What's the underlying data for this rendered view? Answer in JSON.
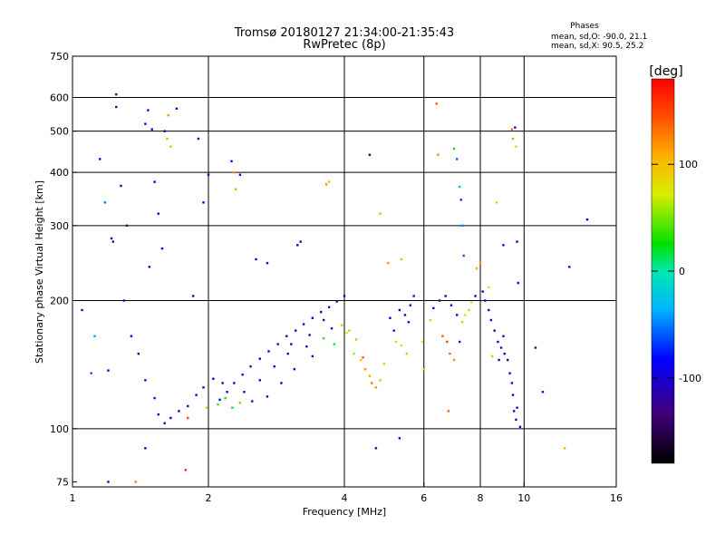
{
  "chart_data": {
    "type": "scatter",
    "title": "Tromsø 20180127 21:34:00-21:35:43",
    "subtitle": "RwPretec (8p)",
    "phase_box": {
      "heading": "Phases",
      "line1": "mean, sd,O: -90.0, 21.1",
      "line2": "mean, sd,X:  90.5, 25.2"
    },
    "xlabel": "Frequency [MHz]",
    "ylabel": "Stationary phase Virtual Height [km]",
    "x_scale": "log",
    "y_scale": "log",
    "xlim": [
      1,
      16
    ],
    "ylim": [
      73,
      750
    ],
    "x_ticks": [
      1,
      2,
      4,
      6,
      8,
      10,
      16
    ],
    "y_ticks": [
      75,
      100,
      200,
      300,
      400,
      500,
      600,
      750
    ],
    "x_gridlines": [
      2,
      4,
      6,
      8,
      10
    ],
    "y_gridlines": [
      100,
      200,
      300,
      400,
      500,
      600
    ],
    "grid": true,
    "colorbar": {
      "label": "[deg]",
      "range": [
        -180,
        180
      ],
      "ticks": [
        100,
        0,
        -100
      ]
    },
    "points": [
      [
        1.05,
        190,
        -100
      ],
      [
        1.1,
        135,
        -60
      ],
      [
        1.12,
        165,
        -40
      ],
      [
        1.15,
        430,
        -100
      ],
      [
        1.18,
        340,
        -50
      ],
      [
        1.25,
        610,
        -120
      ],
      [
        1.25,
        570,
        -110
      ],
      [
        1.28,
        372,
        -100
      ],
      [
        1.32,
        300,
        -130
      ],
      [
        1.45,
        520,
        -100
      ],
      [
        1.47,
        560,
        -110
      ],
      [
        1.5,
        505,
        -80
      ],
      [
        1.52,
        380,
        -90
      ],
      [
        1.55,
        320,
        -110
      ],
      [
        1.58,
        265,
        -100
      ],
      [
        1.62,
        480,
        110
      ],
      [
        1.63,
        545,
        120
      ],
      [
        1.65,
        460,
        100
      ],
      [
        1.7,
        565,
        -120
      ],
      [
        1.85,
        205,
        -100
      ],
      [
        1.9,
        480,
        -100
      ],
      [
        1.95,
        340,
        -90
      ],
      [
        2.0,
        395,
        -100
      ],
      [
        2.25,
        425,
        -80
      ],
      [
        2.28,
        400,
        120
      ],
      [
        2.3,
        365,
        110
      ],
      [
        2.35,
        395,
        -100
      ],
      [
        2.55,
        250,
        -100
      ],
      [
        2.7,
        245,
        -110
      ],
      [
        3.15,
        270,
        -100
      ],
      [
        3.2,
        275,
        -120
      ],
      [
        3.65,
        375,
        120
      ],
      [
        3.7,
        380,
        100
      ],
      [
        4.55,
        440,
        -120
      ],
      [
        4.8,
        320,
        110
      ],
      [
        5.0,
        245,
        120
      ],
      [
        5.35,
        250,
        100
      ],
      [
        6.4,
        580,
        140
      ],
      [
        6.45,
        440,
        120
      ],
      [
        7.0,
        455,
        30
      ],
      [
        7.1,
        430,
        -60
      ],
      [
        7.2,
        370,
        -30
      ],
      [
        7.25,
        345,
        -70
      ],
      [
        7.3,
        300,
        -50
      ],
      [
        7.35,
        255,
        -60
      ],
      [
        8.0,
        245,
        120
      ],
      [
        8.35,
        215,
        80
      ],
      [
        9.0,
        270,
        -100
      ],
      [
        9.4,
        505,
        130
      ],
      [
        9.45,
        480,
        120
      ],
      [
        9.55,
        510,
        -100
      ],
      [
        9.6,
        460,
        90
      ],
      [
        9.65,
        275,
        -90
      ],
      [
        9.7,
        220,
        -100
      ],
      [
        8.7,
        340,
        60
      ],
      [
        13.8,
        310,
        -110
      ],
      [
        12.6,
        240,
        -100
      ],
      [
        10.6,
        155,
        -130
      ],
      [
        11.0,
        122,
        -80
      ],
      [
        12.3,
        90,
        110
      ],
      [
        1.2,
        137,
        -100
      ],
      [
        1.3,
        200,
        -110
      ],
      [
        1.35,
        165,
        -90
      ],
      [
        1.4,
        150,
        -120
      ],
      [
        1.45,
        130,
        -100
      ],
      [
        1.52,
        118,
        -80
      ],
      [
        1.55,
        108,
        -100
      ],
      [
        1.6,
        103,
        -110
      ],
      [
        1.65,
        106,
        -100
      ],
      [
        1.72,
        110,
        -90
      ],
      [
        1.8,
        113,
        -100
      ],
      [
        1.88,
        120,
        -110
      ],
      [
        1.95,
        125,
        -100
      ],
      [
        2.05,
        131,
        -100
      ],
      [
        2.12,
        117,
        -80
      ],
      [
        2.2,
        122,
        -110
      ],
      [
        2.28,
        128,
        -100
      ],
      [
        2.38,
        134,
        -100
      ],
      [
        2.48,
        140,
        -120
      ],
      [
        2.6,
        146,
        -100
      ],
      [
        2.72,
        152,
        -90
      ],
      [
        2.85,
        158,
        -100
      ],
      [
        2.98,
        165,
        -110
      ],
      [
        3.12,
        170,
        -120
      ],
      [
        3.25,
        176,
        -100
      ],
      [
        3.4,
        182,
        -90
      ],
      [
        3.55,
        188,
        -130
      ],
      [
        3.7,
        193,
        -100
      ],
      [
        3.85,
        199,
        -110
      ],
      [
        4.0,
        205,
        -100
      ],
      [
        1.98,
        112,
        60
      ],
      [
        2.1,
        114,
        40
      ],
      [
        2.18,
        118,
        30
      ],
      [
        2.26,
        112,
        20
      ],
      [
        2.35,
        115,
        50
      ],
      [
        3.6,
        163,
        40
      ],
      [
        3.8,
        158,
        20
      ],
      [
        4.2,
        150,
        60
      ],
      [
        4.35,
        145,
        100
      ],
      [
        4.45,
        138,
        120
      ],
      [
        4.55,
        133,
        110
      ],
      [
        4.6,
        128,
        130
      ],
      [
        4.7,
        125,
        120
      ],
      [
        4.8,
        130,
        100
      ],
      [
        4.9,
        142,
        90
      ],
      [
        4.4,
        147,
        140
      ],
      [
        4.25,
        162,
        110
      ],
      [
        4.1,
        170,
        100
      ],
      [
        3.95,
        175,
        60
      ],
      [
        4.05,
        168,
        80
      ],
      [
        5.05,
        182,
        -100
      ],
      [
        5.15,
        170,
        -90
      ],
      [
        5.3,
        190,
        -110
      ],
      [
        5.45,
        185,
        -100
      ],
      [
        5.55,
        178,
        -110
      ],
      [
        5.6,
        195,
        -100
      ],
      [
        5.7,
        205,
        -80
      ],
      [
        5.2,
        160,
        90
      ],
      [
        5.35,
        157,
        80
      ],
      [
        5.5,
        150,
        100
      ],
      [
        6.2,
        180,
        60
      ],
      [
        6.3,
        192,
        -100
      ],
      [
        6.5,
        200,
        -120
      ],
      [
        6.7,
        205,
        -100
      ],
      [
        6.9,
        195,
        -90
      ],
      [
        7.1,
        185,
        -100
      ],
      [
        7.3,
        178,
        60
      ],
      [
        7.4,
        185,
        80
      ],
      [
        7.55,
        190,
        100
      ],
      [
        7.65,
        198,
        70
      ],
      [
        7.8,
        205,
        -100
      ],
      [
        8.1,
        210,
        -110
      ],
      [
        8.2,
        200,
        -100
      ],
      [
        8.35,
        190,
        -90
      ],
      [
        8.45,
        180,
        -110
      ],
      [
        8.6,
        170,
        -120
      ],
      [
        8.75,
        160,
        -100
      ],
      [
        8.9,
        155,
        -80
      ],
      [
        9.05,
        150,
        -100
      ],
      [
        9.2,
        145,
        -110
      ],
      [
        6.6,
        165,
        140
      ],
      [
        6.75,
        160,
        150
      ],
      [
        6.85,
        150,
        130
      ],
      [
        7.0,
        145,
        120
      ],
      [
        7.2,
        160,
        -80
      ],
      [
        9.3,
        135,
        -90
      ],
      [
        9.4,
        128,
        -100
      ],
      [
        9.45,
        120,
        -80
      ],
      [
        9.5,
        110,
        -100
      ],
      [
        9.6,
        105,
        -110
      ],
      [
        9.8,
        101,
        -100
      ],
      [
        9.65,
        112,
        -90
      ],
      [
        8.5,
        148,
        60
      ],
      [
        8.8,
        145,
        -100
      ],
      [
        9.0,
        165,
        -100
      ],
      [
        6.8,
        110,
        140
      ],
      [
        4.7,
        90,
        -130
      ],
      [
        5.3,
        95,
        -100
      ],
      [
        1.8,
        106,
        150
      ],
      [
        1.78,
        80,
        160
      ],
      [
        1.45,
        90,
        -110
      ],
      [
        1.2,
        75,
        -120
      ],
      [
        1.38,
        75,
        130
      ],
      [
        1.6,
        500,
        -110
      ],
      [
        1.22,
        280,
        -120
      ],
      [
        1.23,
        275,
        -130
      ],
      [
        1.48,
        240,
        -100
      ],
      [
        7.85,
        238,
        110
      ],
      [
        5.95,
        160,
        80
      ],
      [
        6.0,
        138,
        60
      ],
      [
        3.3,
        156,
        -100
      ],
      [
        3.0,
        150,
        -100
      ],
      [
        2.8,
        140,
        -100
      ],
      [
        2.6,
        130,
        -110
      ],
      [
        2.4,
        122,
        -100
      ],
      [
        2.9,
        128,
        -90
      ],
      [
        3.1,
        138,
        -100
      ],
      [
        3.4,
        148,
        -110
      ],
      [
        2.5,
        116,
        -80
      ],
      [
        2.7,
        119,
        -100
      ],
      [
        3.05,
        158,
        -120
      ],
      [
        3.35,
        166,
        -100
      ],
      [
        3.6,
        180,
        -130
      ],
      [
        3.75,
        172,
        -100
      ],
      [
        2.15,
        128,
        -100
      ]
    ]
  }
}
